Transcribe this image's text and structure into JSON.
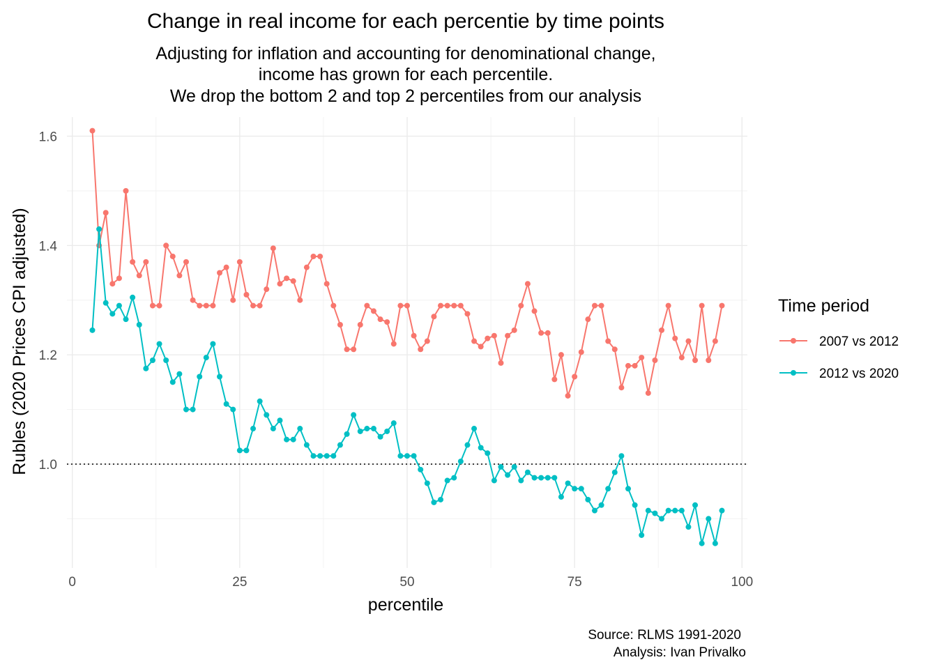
{
  "chart_data": {
    "type": "line",
    "title": "Change in real income for each percentie by time points",
    "subtitle": [
      "Adjusting for inflation and accounting for denominational change,",
      "income has grown for each percentile.",
      "We drop the bottom 2 and top 2 percentiles from our analysis"
    ],
    "xlabel": "percentile",
    "ylabel": "Rubles (2020 Prices CPI adjusted)",
    "xlim": [
      -0.8,
      100.8
    ],
    "ylim": [
      0.81,
      1.635
    ],
    "x_ticks": [
      0,
      25,
      50,
      75,
      100
    ],
    "x_tick_labels": [
      "0",
      "25",
      "50",
      "75",
      "100"
    ],
    "y_ticks": [
      1.0,
      1.2,
      1.4,
      1.6
    ],
    "y_tick_labels": [
      "1.0",
      "1.2",
      "1.4",
      "1.6"
    ],
    "grid": true,
    "reference_line": {
      "y": 1.0,
      "style": "dotted"
    },
    "legend": {
      "title": "Time period",
      "position": "right"
    },
    "x": [
      3,
      4,
      5,
      6,
      7,
      8,
      9,
      10,
      11,
      12,
      13,
      14,
      15,
      16,
      17,
      18,
      19,
      20,
      21,
      22,
      23,
      24,
      25,
      26,
      27,
      28,
      29,
      30,
      31,
      32,
      33,
      34,
      35,
      36,
      37,
      38,
      39,
      40,
      41,
      42,
      43,
      44,
      45,
      46,
      47,
      48,
      49,
      50,
      51,
      52,
      53,
      54,
      55,
      56,
      57,
      58,
      59,
      60,
      61,
      62,
      63,
      64,
      65,
      66,
      67,
      68,
      69,
      70,
      71,
      72,
      73,
      74,
      75,
      76,
      77,
      78,
      79,
      80,
      81,
      82,
      83,
      84,
      85,
      86,
      87,
      88,
      89,
      90,
      91,
      92,
      93,
      94,
      95,
      96,
      97
    ],
    "series": [
      {
        "name": "2007 vs 2012",
        "color": "#F8766D",
        "values": [
          1.61,
          1.4,
          1.46,
          1.33,
          1.34,
          1.5,
          1.37,
          1.345,
          1.37,
          1.29,
          1.29,
          1.4,
          1.38,
          1.345,
          1.37,
          1.3,
          1.29,
          1.29,
          1.29,
          1.35,
          1.36,
          1.3,
          1.37,
          1.31,
          1.29,
          1.29,
          1.32,
          1.395,
          1.33,
          1.34,
          1.335,
          1.3,
          1.36,
          1.38,
          1.38,
          1.33,
          1.29,
          1.255,
          1.21,
          1.21,
          1.255,
          1.29,
          1.28,
          1.265,
          1.26,
          1.22,
          1.29,
          1.29,
          1.235,
          1.21,
          1.225,
          1.27,
          1.29,
          1.29,
          1.29,
          1.29,
          1.275,
          1.225,
          1.215,
          1.23,
          1.235,
          1.185,
          1.235,
          1.245,
          1.29,
          1.33,
          1.28,
          1.24,
          1.24,
          1.155,
          1.2,
          1.125,
          1.16,
          1.205,
          1.265,
          1.29,
          1.29,
          1.225,
          1.21,
          1.14,
          1.18,
          1.18,
          1.195,
          1.13,
          1.19,
          1.245,
          1.29,
          1.23,
          1.195,
          1.225,
          1.19,
          1.29,
          1.19,
          1.225,
          1.29
        ]
      },
      {
        "name": "2012 vs 2020",
        "color": "#00BFC4",
        "values": [
          1.245,
          1.43,
          1.295,
          1.275,
          1.29,
          1.265,
          1.305,
          1.255,
          1.175,
          1.19,
          1.22,
          1.19,
          1.15,
          1.165,
          1.1,
          1.1,
          1.16,
          1.195,
          1.22,
          1.16,
          1.11,
          1.1,
          1.025,
          1.025,
          1.065,
          1.115,
          1.09,
          1.065,
          1.08,
          1.045,
          1.045,
          1.065,
          1.035,
          1.015,
          1.015,
          1.015,
          1.015,
          1.035,
          1.055,
          1.09,
          1.06,
          1.065,
          1.065,
          1.05,
          1.06,
          1.075,
          1.015,
          1.015,
          1.015,
          0.99,
          0.965,
          0.93,
          0.935,
          0.97,
          0.975,
          1.005,
          1.035,
          1.065,
          1.03,
          1.02,
          0.97,
          0.995,
          0.98,
          0.995,
          0.97,
          0.985,
          0.975,
          0.975,
          0.975,
          0.975,
          0.94,
          0.965,
          0.955,
          0.955,
          0.935,
          0.915,
          0.925,
          0.955,
          0.985,
          1.015,
          0.955,
          0.925,
          0.87,
          0.915,
          0.91,
          0.9,
          0.915,
          0.915,
          0.915,
          0.885,
          0.925,
          0.855,
          0.9,
          0.855,
          0.915
        ]
      }
    ],
    "caption": [
      "Source: RLMS 1991-2020",
      "Analysis: Ivan Privalko"
    ]
  }
}
